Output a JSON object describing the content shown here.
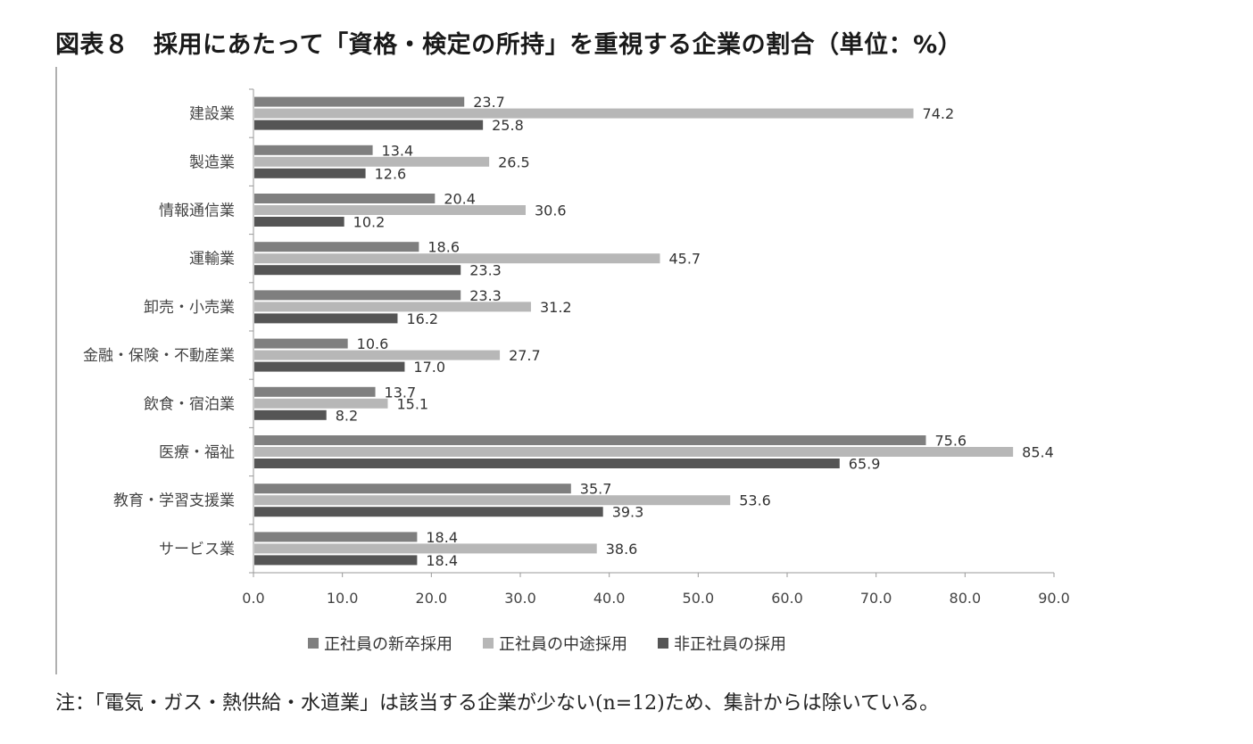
{
  "title": "図表８　採用にあたって「資格・検定の所持」を重視する企業の割合（単位：%）",
  "footnote": "注：「電気・ガス・熱供給・水道業」は該当する企業が少ない(n=12)ため、集計からは除いている。",
  "colors": {
    "series1": "#7f7f7f",
    "series2": "#b7b7b7",
    "series3": "#555555",
    "axis": "#9a9a9a",
    "label": "#444444"
  },
  "chart_data": {
    "type": "bar",
    "orientation": "horizontal",
    "categories": [
      "建設業",
      "製造業",
      "情報通信業",
      "運輸業",
      "卸売・小売業",
      "金融・保険・不動産業",
      "飲食・宿泊業",
      "医療・福祉",
      "教育・学習支援業",
      "サービス業"
    ],
    "series": [
      {
        "name": "正社員の新卒採用",
        "values": [
          23.7,
          13.4,
          20.4,
          18.6,
          23.3,
          10.6,
          13.7,
          75.6,
          35.7,
          18.4
        ],
        "labels": [
          "23.7",
          "13.4",
          "20.4",
          "18.6",
          "23.3",
          "10.6",
          "13.7",
          "75.6",
          "35.7",
          "18.4"
        ]
      },
      {
        "name": "正社員の中途採用",
        "values": [
          74.2,
          26.5,
          30.6,
          45.7,
          31.2,
          27.7,
          15.1,
          85.4,
          53.6,
          38.6
        ],
        "labels": [
          "74.2",
          "26.5",
          "30.6",
          "45.7",
          "31.2",
          "27.7",
          "15.1",
          "85.4",
          "53.6",
          "38.6"
        ]
      },
      {
        "name": "非正社員の採用",
        "values": [
          25.8,
          12.6,
          10.2,
          23.3,
          16.2,
          17.0,
          8.2,
          65.9,
          39.3,
          18.4
        ],
        "labels": [
          "25.8",
          "12.6",
          "10.2",
          "23.3",
          "16.2",
          "17.0",
          "8.2",
          "65.9",
          "39.3",
          "18.4"
        ]
      }
    ],
    "xlim": [
      0,
      90
    ],
    "xticks": [
      0,
      10,
      20,
      30,
      40,
      50,
      60,
      70,
      80,
      90
    ],
    "xtick_labels": [
      "0.0",
      "10.0",
      "20.0",
      "30.0",
      "40.0",
      "50.0",
      "60.0",
      "70.0",
      "80.0",
      "90.0"
    ],
    "grid": false,
    "legend_position": "bottom"
  }
}
